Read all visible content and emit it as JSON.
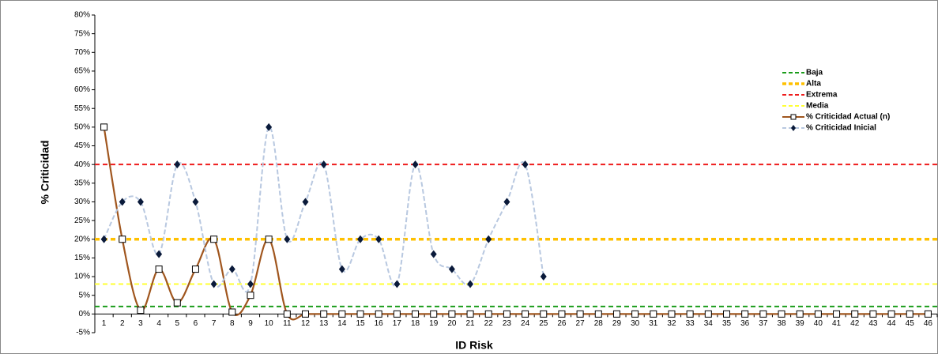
{
  "chart_data": {
    "type": "line",
    "xlabel": "ID Risk",
    "ylabel": "% Criticidad",
    "categories": [
      "1",
      "2",
      "3",
      "4",
      "5",
      "6",
      "7",
      "8",
      "9",
      "10",
      "11",
      "12",
      "13",
      "14",
      "15",
      "16",
      "17",
      "18",
      "19",
      "20",
      "21",
      "22",
      "23",
      "24",
      "25",
      "26",
      "27",
      "28",
      "29",
      "30",
      "31",
      "32",
      "33",
      "34",
      "35",
      "36",
      "37",
      "38",
      "39",
      "40",
      "41",
      "42",
      "43",
      "44",
      "45",
      "46"
    ],
    "ylim": [
      -5,
      80
    ],
    "yticks": [
      {
        "value": -5,
        "label": "-5%"
      },
      {
        "value": 0,
        "label": "0%"
      },
      {
        "value": 5,
        "label": "5%"
      },
      {
        "value": 10,
        "label": "10%"
      },
      {
        "value": 15,
        "label": "15%"
      },
      {
        "value": 20,
        "label": "20%"
      },
      {
        "value": 25,
        "label": "25%"
      },
      {
        "value": 30,
        "label": "30%"
      },
      {
        "value": 35,
        "label": "35%"
      },
      {
        "value": 40,
        "label": "40%"
      },
      {
        "value": 45,
        "label": "45%"
      },
      {
        "value": 50,
        "label": "50%"
      },
      {
        "value": 55,
        "label": "55%"
      },
      {
        "value": 60,
        "label": "60%"
      },
      {
        "value": 65,
        "label": "65%"
      },
      {
        "value": 70,
        "label": "70%"
      },
      {
        "value": 75,
        "label": "75%"
      },
      {
        "value": 80,
        "label": "80%"
      }
    ],
    "reference_lines": [
      {
        "name": "Baja",
        "color": "#1a9c1a",
        "value": 2,
        "width": 2
      },
      {
        "name": "Alta",
        "color": "#ffc000",
        "value": 20,
        "width": 3.5
      },
      {
        "name": "Extrema",
        "color": "#ee1c1c",
        "value": 40,
        "width": 2
      },
      {
        "name": "Media",
        "color": "#ffff33",
        "value": 8,
        "width": 2
      }
    ],
    "series": [
      {
        "name": "% Criticidad Actual (n)",
        "color": "#a0561e",
        "marker": "square",
        "values": [
          50,
          20,
          1,
          12,
          3,
          12,
          20,
          0.5,
          5,
          20,
          0,
          0,
          0,
          0,
          0,
          0,
          0,
          0,
          0,
          0,
          0,
          0,
          0,
          0,
          0,
          0,
          0,
          0,
          0,
          0,
          0,
          0,
          0,
          0,
          0,
          0,
          0,
          0,
          0,
          0,
          0,
          0,
          0,
          0,
          0,
          0
        ]
      },
      {
        "name": "% Criticidad Inicial",
        "color": "#b8c8e0",
        "marker": "diamond",
        "values": [
          20,
          30,
          30,
          16,
          40,
          30,
          8,
          12,
          8,
          50,
          20,
          30,
          40,
          12,
          20,
          20,
          8,
          40,
          16,
          12,
          8,
          20,
          30,
          40,
          10,
          null,
          null,
          null,
          null,
          null,
          null,
          null,
          null,
          null,
          null,
          null,
          null,
          null,
          null,
          null,
          null,
          null,
          null,
          null,
          null,
          null
        ]
      }
    ],
    "legend_position": "upper right"
  }
}
